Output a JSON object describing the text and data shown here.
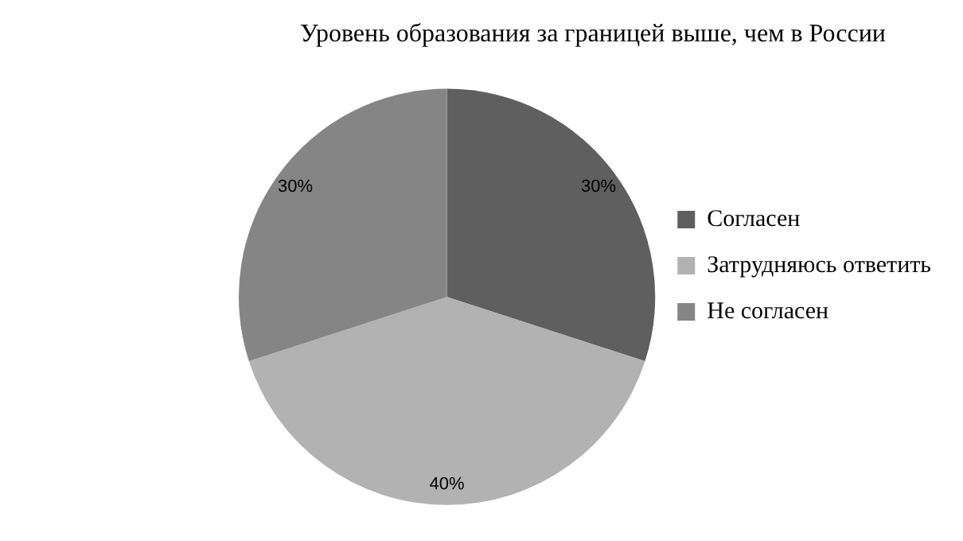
{
  "chart_data": {
    "type": "pie",
    "title": "Уровень образования за границей выше, чем в России",
    "categories": [
      "Согласен",
      "Затрудняюсь ответить",
      "Не согласен"
    ],
    "values": [
      30,
      40,
      30
    ],
    "colors": [
      "#5f5f5f",
      "#b2b2b2",
      "#858585"
    ],
    "value_labels": [
      "30%",
      "40%",
      "30%"
    ],
    "legend": "right"
  }
}
